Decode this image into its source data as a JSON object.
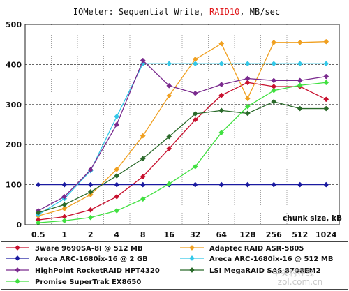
{
  "chart_data": {
    "type": "line",
    "title": {
      "prefix": "IOMeter: Sequential  Write, ",
      "highlight": "RAID10",
      "suffix": ", MB/sec",
      "highlight_color": "#e0181b"
    },
    "xlabel": "chunk size, kB",
    "ylabel": "",
    "categories": [
      "0.5",
      "1",
      "2",
      "4",
      "8",
      "16",
      "32",
      "64",
      "128",
      "256",
      "512",
      "1024"
    ],
    "yticks": [
      0,
      100,
      200,
      300,
      400,
      500
    ],
    "ylim": [
      0,
      500
    ],
    "grid": {
      "horizontal_dashed": true,
      "vertical_dashed": true
    },
    "legend_position": "bottom",
    "series": [
      {
        "name": "3ware 9690SA-8I @ 512 MB",
        "color": "#c8102e",
        "values": [
          12,
          20,
          37,
          70,
          120,
          190,
          262,
          323,
          355,
          345,
          345,
          313
        ]
      },
      {
        "name": "Adaptec RAID ASR-5805",
        "color": "#f0a020",
        "values": [
          22,
          40,
          75,
          138,
          222,
          322,
          413,
          452,
          315,
          455,
          455,
          457
        ]
      },
      {
        "name": "Areca ARC-1680ix-16 @ 2 GB",
        "color": "#1a1aa0",
        "values": [
          100,
          100,
          100,
          100,
          100,
          100,
          100,
          100,
          100,
          100,
          100,
          100
        ]
      },
      {
        "name": "Areca ARC-1680ix-16 @ 512 MB",
        "color": "#33c8e8",
        "values": [
          25,
          65,
          135,
          270,
          402,
          402,
          402,
          402,
          402,
          402,
          402,
          402
        ]
      },
      {
        "name": "HighPoint RocketRAID HPT4320",
        "color": "#7a2a8e",
        "values": [
          35,
          70,
          137,
          250,
          410,
          347,
          328,
          350,
          365,
          360,
          360,
          370
        ]
      },
      {
        "name": "LSI MegaRAID SAS 8708EM2",
        "color": "#2a6a2a",
        "values": [
          30,
          50,
          82,
          122,
          165,
          220,
          277,
          285,
          278,
          307,
          290,
          290
        ]
      },
      {
        "name": "Promise SuperTrak EX8650",
        "color": "#40e040",
        "values": [
          5,
          10,
          18,
          35,
          64,
          102,
          145,
          230,
          295,
          335,
          348,
          355
        ]
      }
    ]
  },
  "watermark": {
    "line1": "中关村在线",
    "line2": "zol.com.cn"
  }
}
